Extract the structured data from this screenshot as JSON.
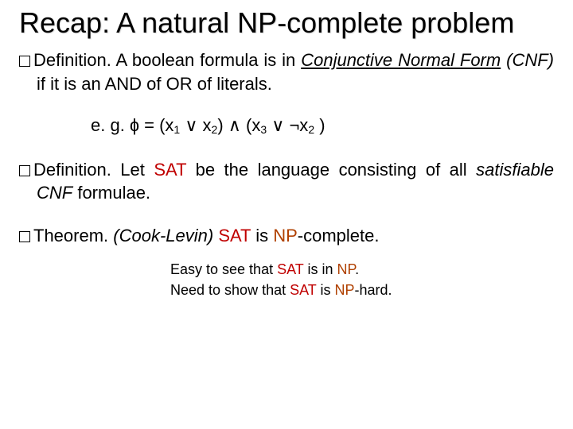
{
  "title": "Recap:  A natural NP-complete problem",
  "colors": {
    "sat": "#c00000",
    "np": "#b04000",
    "text": "#000000",
    "bg": "#ffffff"
  },
  "block1": {
    "label": "Definition.",
    "pre": "  A boolean formula is in ",
    "cnf": "Conjunctive Normal Form",
    "post1": " ",
    "cnfAbbr": "(CNF)",
    "post2": " if it is an AND of OR of literals."
  },
  "formula": {
    "lead": "e. g.   ɸ = (x",
    "s1": "1",
    "or1": " ∨  x",
    "s2": "2",
    "mid": ")  ∧   (x",
    "s3": "3",
    "or2": " ∨  ¬x",
    "s4": "2",
    "end": " )"
  },
  "block2": {
    "label": "Definition.",
    "t1": " Let ",
    "sat": "SAT",
    "t2": " be the language consisting of all ",
    "satisfiable": "satisfiable",
    "t3": " ",
    "cnf": "CNF",
    "t4": " formulae."
  },
  "block3": {
    "label": "Theorem.",
    "cook": " (Cook-Levin)",
    "sp": " ",
    "sat": "SAT",
    "t1": " is ",
    "np": "NP",
    "t2": "-complete."
  },
  "notes": {
    "l1a": "Easy to see that ",
    "l1sat": "SAT",
    "l1b": " is in ",
    "l1np": "NP",
    "l1c": ".",
    "l2a": "Need to show that ",
    "l2sat": "SAT",
    "l2b": " is ",
    "l2np": "NP",
    "l2c": "-hard."
  }
}
